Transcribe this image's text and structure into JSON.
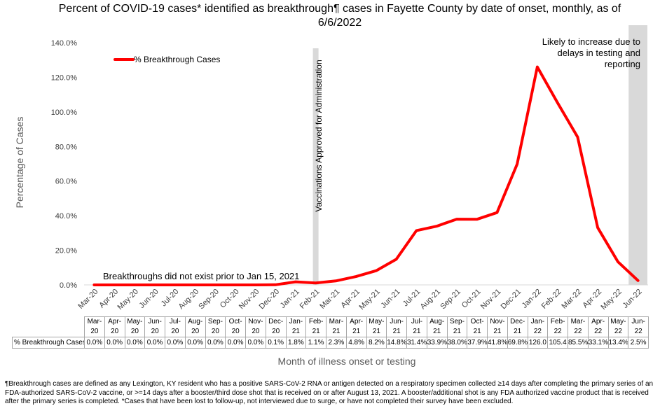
{
  "chart_data": {
    "type": "line",
    "title": "Percent of COVID-19 cases* identified as breakthrough¶ cases in Fayette County by date of onset, monthly, as of 6/6/2022",
    "xlabel": "Month of illness onset or testing",
    "ylabel": "Percentage of Cases",
    "ylim": [
      0,
      140
    ],
    "yticks": [
      "0.0%",
      "20.0%",
      "40.0%",
      "60.0%",
      "80.0%",
      "100.0%",
      "120.0%",
      "140.0%"
    ],
    "grid": false,
    "legend_position": "top-left",
    "categories": [
      "Mar-20",
      "Apr-20",
      "May-20",
      "Jun-20",
      "Jul-20",
      "Aug-20",
      "Sep-20",
      "Oct-20",
      "Nov-20",
      "Dec-20",
      "Jan-21",
      "Feb-21",
      "Mar-21",
      "Apr-21",
      "May-21",
      "Jun-21",
      "Jul-21",
      "Aug-21",
      "Sep-21",
      "Oct-21",
      "Nov-21",
      "Dec-21",
      "Jan-22",
      "Feb-22",
      "Mar-22",
      "Apr-22",
      "May-22",
      "Jun-22"
    ],
    "table_headers_top": [
      "Mar-",
      "Apr-",
      "May-",
      "Jun-",
      "Jul-",
      "Aug-",
      "Sep-",
      "Oct-",
      "Nov-",
      "Dec-",
      "Jan-",
      "Feb-",
      "Mar-",
      "Apr-",
      "May-",
      "Jun-",
      "Jul-",
      "Aug-",
      "Sep-",
      "Oct-",
      "Nov-",
      "Dec-",
      "Jan-",
      "Feb-",
      "Mar-",
      "Apr-",
      "May-",
      "Jun-"
    ],
    "table_headers_bottom": [
      "20",
      "20",
      "20",
      "20",
      "20",
      "20",
      "20",
      "20",
      "20",
      "20",
      "21",
      "21",
      "21",
      "21",
      "21",
      "21",
      "21",
      "21",
      "21",
      "21",
      "21",
      "21",
      "22",
      "22",
      "22",
      "22",
      "22",
      "22"
    ],
    "series": [
      {
        "name": "% Breakthrough Cases",
        "color": "#ff0000",
        "values": [
          0.0,
          0.0,
          0.0,
          0.0,
          0.0,
          0.0,
          0.0,
          0.0,
          0.0,
          0.1,
          1.8,
          1.1,
          2.3,
          4.8,
          8.2,
          14.8,
          31.4,
          33.9,
          38.0,
          37.9,
          41.8,
          69.8,
          126.0,
          105.4,
          85.5,
          33.1,
          13.4,
          2.5
        ],
        "labels": [
          "0.0%",
          "0.0%",
          "0.0%",
          "0.0%",
          "0.0%",
          "0.0%",
          "0.0%",
          "0.0%",
          "0.0%",
          "0.1%",
          "1.8%",
          "1.1%",
          "2.3%",
          "4.8%",
          "8.2%",
          "14.8%",
          "31.4%",
          "33.9%",
          "38.0%",
          "37.9%",
          "41.8%",
          "69.8%",
          "126.0",
          "105.4",
          "85.5%",
          "33.1%",
          "13.4%",
          "2.5%"
        ]
      }
    ],
    "table_row_label": "% Breakthrough Cases",
    "annotations": {
      "vaccination_band_month": "Feb-21",
      "vaccination_text": "Vaccinations Approved for Administration",
      "no_breakthrough_text": "Breakthroughs did not exist prior to Jan 15, 2021",
      "likely_increase_band_month": "Jun-22",
      "likely_increase_lines": [
        "Likely to increase due to",
        "delays in testing and",
        "reporting"
      ],
      "band_color": "#d9d9d9"
    }
  },
  "footnote": "¶Breakthrough cases are defined as any Lexington, KY resident who has a positive SARS-CoV-2 RNA or antigen detected on a respiratory specimen collected ≥14 days after completing the primary series of an FDA-authorized SARS-CoV-2 vaccine, or >=14 days after a booster/third dose shot that is received on or after August 13, 2021.  A booster/additional shot is any FDA authorized vaccine product that is received after the primary series is completed.  *Cases that have been lost to follow-up, not interviewed due to surge, or have not completed their survey have been excluded."
}
